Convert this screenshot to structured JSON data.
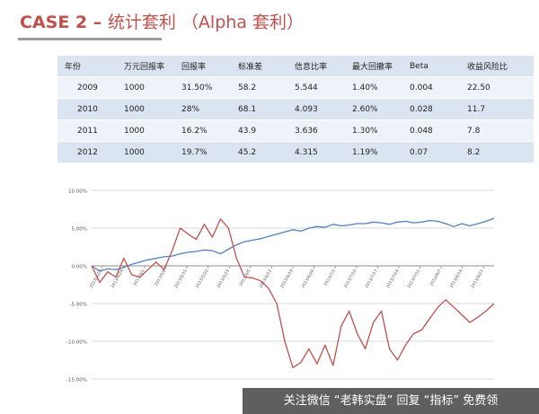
{
  "title": {
    "case": "CASE 2 – ",
    "cn": "统计套利 （Alpha 套利）"
  },
  "table": {
    "headers": [
      "年份",
      "万元回报率",
      "回报率",
      "标准差",
      "信息比率",
      "最大回撤率",
      "Beta",
      "收益风险比"
    ],
    "rows": [
      [
        "2009",
        "1000",
        "31.50%",
        "58.2",
        "5.544",
        "1.40%",
        "0.004",
        "22.50"
      ],
      [
        "2010",
        "1000",
        "28%",
        "68.1",
        "4.093",
        "2.60%",
        "0.028",
        "11.7"
      ],
      [
        "2011",
        "1000",
        "16.2%",
        "43.9",
        "3.636",
        "1.30%",
        "0.048",
        "7.8"
      ],
      [
        "2012",
        "1000",
        "19.7%",
        "45.2",
        "4.315",
        "1.19%",
        "0.07",
        "8.2"
      ]
    ]
  },
  "chart_data": {
    "type": "line",
    "ylim": [
      -15,
      10
    ],
    "yticks": [
      "10.00%",
      "5.00%",
      "0.00%",
      "-5.00%",
      "-10.00%",
      "-15.00%"
    ],
    "xticks": [
      "2013/4/20",
      "2013/4/24",
      "2013/5/1",
      "2013/5/8",
      "2013/5/15",
      "2013/5/22",
      "2013/5/29",
      "2013/6/5",
      "2013/6/12",
      "2013/6/19",
      "2013/6/26",
      "2013/7/3",
      "2013/7/10",
      "2013/7/17",
      "2013/7/24",
      "2013/7/31",
      "2013/8/7",
      "2013/8/14",
      "2013/8/21"
    ],
    "grid": true,
    "series": [
      {
        "color": "#4f81bd",
        "values": [
          0.0,
          -0.7,
          -0.4,
          -0.5,
          -0.2,
          0.2,
          0.5,
          0.8,
          1.0,
          1.2,
          1.3,
          1.6,
          1.8,
          1.9,
          2.1,
          2.0,
          1.6,
          2.2,
          2.8,
          3.2,
          3.4,
          3.6,
          3.9,
          4.2,
          4.5,
          4.8,
          4.6,
          5.0,
          5.2,
          5.1,
          5.5,
          5.3,
          5.4,
          5.6,
          5.6,
          5.8,
          5.7,
          5.5,
          5.8,
          5.9,
          5.7,
          5.8,
          6.0,
          5.9,
          5.6,
          5.2,
          5.6,
          5.3,
          5.6,
          5.9,
          6.3
        ]
      },
      {
        "color": "#c0504d",
        "values": [
          0.0,
          -2.2,
          -0.8,
          -1.5,
          1.0,
          -1.2,
          -1.5,
          -0.5,
          0.5,
          -0.5,
          2.0,
          5.0,
          4.2,
          3.5,
          5.5,
          3.8,
          6.2,
          5.0,
          1.0,
          -1.5,
          -1.6,
          -2.0,
          -3.0,
          -5.0,
          -10.0,
          -13.5,
          -12.8,
          -11.0,
          -13.0,
          -10.5,
          -13.2,
          -8.0,
          -6.0,
          -9.0,
          -11.0,
          -7.5,
          -6.0,
          -11.0,
          -12.5,
          -10.5,
          -9.0,
          -8.5,
          -7.0,
          -5.5,
          -4.5,
          -5.5,
          -6.5,
          -7.5,
          -6.8,
          -6.0,
          -5.0
        ]
      }
    ]
  },
  "watermark": "关注微信 “老韩实盘” 回复 “指标” 免费领"
}
